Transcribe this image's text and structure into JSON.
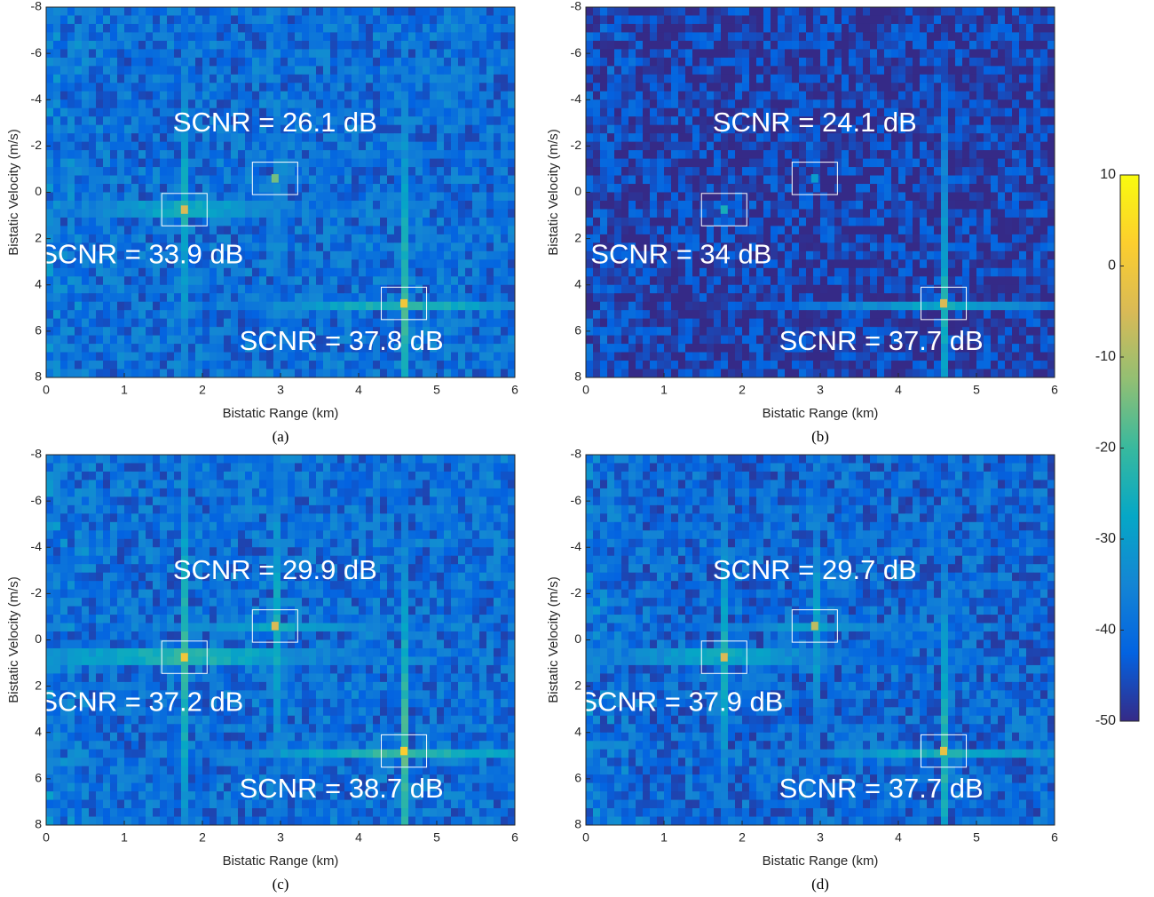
{
  "chart_data": [
    {
      "type": "heatmap",
      "caption": "(a)",
      "xlabel": "Bistatic Range (km)",
      "ylabel": "Bistatic Velocity (m/s)",
      "xlim": [
        0,
        6
      ],
      "xticks": [
        0,
        1,
        2,
        3,
        4,
        5,
        6
      ],
      "ylim": [
        -8,
        8
      ],
      "yticks": [
        -8,
        -6,
        -4,
        -2,
        0,
        2,
        4,
        6,
        8
      ],
      "y_reversed": true,
      "noise_floor": -40,
      "targets": [
        {
          "range": 1.77,
          "velocity": 0.75,
          "peak": -5,
          "label": "SCNR = 33.9 dB"
        },
        {
          "range": 2.93,
          "velocity": -0.6,
          "peak": -15,
          "label": "SCNR = 26.1 dB"
        },
        {
          "range": 4.58,
          "velocity": 4.8,
          "peak": 0,
          "label": "SCNR = 37.8 dB"
        }
      ]
    },
    {
      "type": "heatmap",
      "caption": "(b)",
      "xlabel": "Bistatic Range (km)",
      "ylabel": "Bistatic Velocity (m/s)",
      "xlim": [
        0,
        6
      ],
      "xticks": [
        0,
        1,
        2,
        3,
        4,
        5,
        6
      ],
      "ylim": [
        -8,
        8
      ],
      "yticks": [
        -8,
        -6,
        -4,
        -2,
        0,
        2,
        4,
        6,
        8
      ],
      "y_reversed": true,
      "noise_floor": -47,
      "targets": [
        {
          "range": 1.77,
          "velocity": 0.75,
          "peak": -25,
          "label": "SCNR = 34 dB"
        },
        {
          "range": 2.93,
          "velocity": -0.6,
          "peak": -30,
          "label": "SCNR = 24.1 dB"
        },
        {
          "range": 4.58,
          "velocity": 4.8,
          "peak": -5,
          "label": "SCNR = 37.7 dB"
        }
      ]
    },
    {
      "type": "heatmap",
      "caption": "(c)",
      "xlabel": "Bistatic Range (km)",
      "ylabel": "Bistatic Velocity (m/s)",
      "xlim": [
        0,
        6
      ],
      "xticks": [
        0,
        1,
        2,
        3,
        4,
        5,
        6
      ],
      "ylim": [
        -8,
        8
      ],
      "yticks": [
        -8,
        -6,
        -4,
        -2,
        0,
        2,
        4,
        6,
        8
      ],
      "y_reversed": true,
      "noise_floor": -40,
      "targets": [
        {
          "range": 1.77,
          "velocity": 0.75,
          "peak": 0,
          "label": "SCNR = 37.2 dB"
        },
        {
          "range": 2.93,
          "velocity": -0.6,
          "peak": -5,
          "label": "SCNR = 29.9 dB"
        },
        {
          "range": 4.58,
          "velocity": 4.8,
          "peak": 2,
          "label": "SCNR = 38.7 dB"
        }
      ]
    },
    {
      "type": "heatmap",
      "caption": "(d)",
      "xlabel": "Bistatic Range (km)",
      "ylabel": "Bistatic Velocity (m/s)",
      "xlim": [
        0,
        6
      ],
      "xticks": [
        0,
        1,
        2,
        3,
        4,
        5,
        6
      ],
      "ylim": [
        -8,
        8
      ],
      "yticks": [
        -8,
        -6,
        -4,
        -2,
        0,
        2,
        4,
        6,
        8
      ],
      "y_reversed": true,
      "noise_floor": -41,
      "targets": [
        {
          "range": 1.77,
          "velocity": 0.75,
          "peak": -5,
          "label": "SCNR = 37.9 dB"
        },
        {
          "range": 2.93,
          "velocity": -0.6,
          "peak": -8,
          "label": "SCNR = 29.7 dB"
        },
        {
          "range": 4.58,
          "velocity": 4.8,
          "peak": -2,
          "label": "SCNR = 37.7 dB"
        }
      ]
    }
  ],
  "colorbar": {
    "lim": [
      -50,
      10
    ],
    "ticks": [
      10,
      0,
      -10,
      -20,
      -30,
      -40,
      -50
    ],
    "colormap": [
      "#352a87",
      "#0363e1",
      "#1485d4",
      "#06a7c6",
      "#38b99e",
      "#92bf73",
      "#d9ba56",
      "#fcce2e",
      "#f9fb0e"
    ]
  }
}
